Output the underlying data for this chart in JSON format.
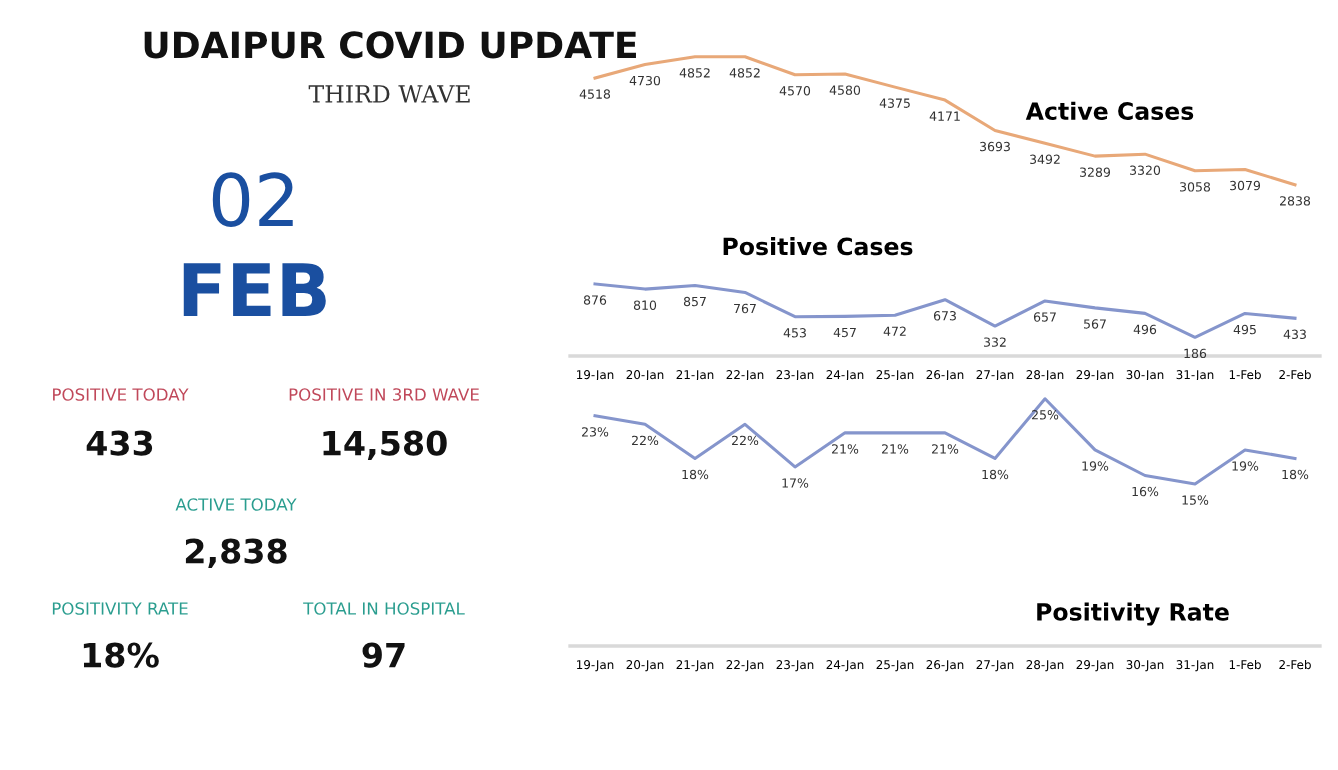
{
  "chart_data": [
    {
      "type": "other",
      "title": "UDAIPUR COVID UPDATE",
      "subtitle": "THIRD WAVE",
      "annotations": [
        "02",
        "FEB",
        "POSITIVE TODAY",
        "433",
        "POSITIVE IN 3RD WAVE",
        "14,580",
        "ACTIVE TODAY",
        "2,838",
        "POSITIVITY RATE",
        "18%",
        "TOTAL IN HOSPITAL",
        "97"
      ]
    },
    {
      "type": "line",
      "title": "Active Cases",
      "categories": [
        null,
        null,
        null,
        null,
        null,
        null,
        null,
        null,
        null,
        null,
        null,
        null,
        null,
        null,
        null
      ],
      "data_labels": true,
      "series": [
        {
          "color": "#e8a878",
          "values": [
            4518,
            4730,
            4852,
            4852,
            4570,
            4580,
            4375,
            4171,
            3693,
            3492,
            3289,
            3320,
            3058,
            3079,
            2838
          ]
        }
      ]
    },
    {
      "type": "line",
      "title": "Positive Cases",
      "categories": [
        "19-Jan",
        "20-Jan",
        "21-Jan",
        "22-Jan",
        "23-Jan",
        "24-Jan",
        "25-Jan",
        "26-Jan",
        "27-Jan",
        "28-Jan",
        "29-Jan",
        "30-Jan",
        "31-Jan",
        "1-Feb",
        "2-Feb"
      ],
      "data_labels": true,
      "series": [
        {
          "color": "#8595cc",
          "values": [
            876,
            810,
            857,
            767,
            453,
            457,
            472,
            673,
            332,
            657,
            567,
            496,
            186,
            495,
            433
          ]
        }
      ]
    },
    {
      "type": "line",
      "title": "Positivity Rate",
      "categories": [
        "19-Jan",
        "20-Jan",
        "21-Jan",
        "22-Jan",
        "23-Jan",
        "24-Jan",
        "25-Jan",
        "26-Jan",
        "27-Jan",
        "28-Jan",
        "29-Jan",
        "30-Jan",
        "31-Jan",
        "1-Feb",
        "2-Feb"
      ],
      "series": [
        {
          "color": "#8595cc",
          "values": [
            23,
            22,
            18,
            22,
            17,
            21,
            21,
            21,
            18,
            25,
            19,
            16,
            15,
            19,
            18
          ],
          "value_labels": [
            "23%",
            "22%",
            "18%",
            "22%",
            "17%",
            "21%",
            "21%",
            "21%",
            "18%",
            "25%",
            "19%",
            "16%",
            "15%",
            "19%",
            "18%"
          ]
        }
      ]
    }
  ]
}
